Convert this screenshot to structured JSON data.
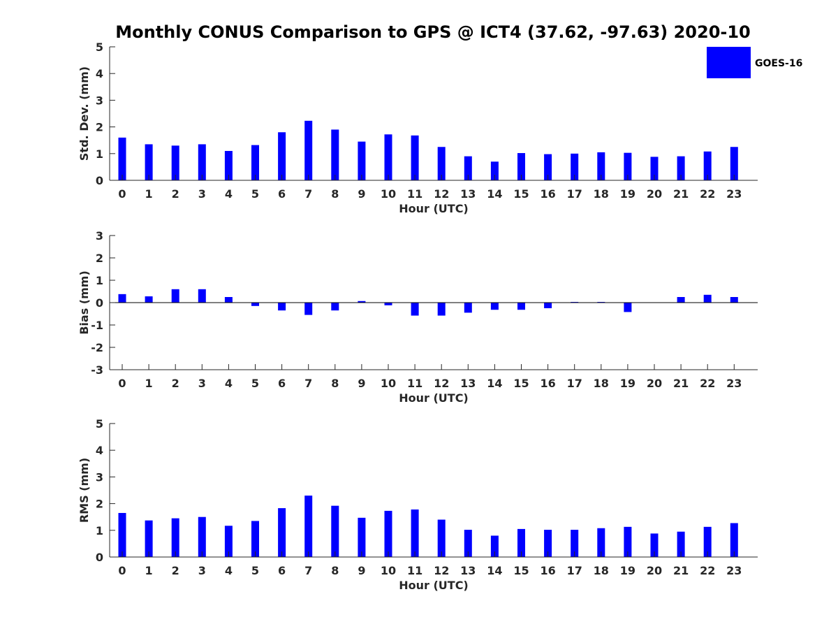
{
  "title": "Monthly CONUS Comparison to GPS @ ICT4 (37.62, -97.63) 2020-10",
  "legend": {
    "label": "GOES-16",
    "color": "#0000ff",
    "placement": "top-right"
  },
  "chart_data": [
    {
      "type": "bar",
      "name": "std-dev",
      "categories": [
        "0",
        "1",
        "2",
        "3",
        "4",
        "5",
        "6",
        "7",
        "8",
        "9",
        "10",
        "11",
        "12",
        "13",
        "14",
        "15",
        "16",
        "17",
        "18",
        "19",
        "20",
        "21",
        "22",
        "23"
      ],
      "series": [
        {
          "name": "GOES-16",
          "color": "#0000ff",
          "values": [
            1.6,
            1.35,
            1.3,
            1.35,
            1.1,
            1.32,
            1.8,
            2.23,
            1.9,
            1.45,
            1.72,
            1.68,
            1.25,
            0.9,
            0.7,
            1.02,
            0.98,
            1.0,
            1.05,
            1.03,
            0.88,
            0.9,
            1.08,
            1.25
          ]
        }
      ],
      "xlabel": "Hour (UTC)",
      "ylabel": "Std. Dev. (mm)",
      "ylim": [
        0,
        5
      ],
      "yticks": [
        "0",
        "1",
        "2",
        "3",
        "4",
        "5"
      ],
      "grid": false
    },
    {
      "type": "bar",
      "name": "bias",
      "categories": [
        "0",
        "1",
        "2",
        "3",
        "4",
        "5",
        "6",
        "7",
        "8",
        "9",
        "10",
        "11",
        "12",
        "13",
        "14",
        "15",
        "16",
        "17",
        "18",
        "19",
        "20",
        "21",
        "22",
        "23"
      ],
      "series": [
        {
          "name": "GOES-16",
          "color": "#0000ff",
          "values": [
            0.38,
            0.28,
            0.6,
            0.6,
            0.25,
            -0.15,
            -0.35,
            -0.55,
            -0.35,
            0.07,
            -0.12,
            -0.58,
            -0.58,
            -0.45,
            -0.32,
            -0.32,
            -0.25,
            0.03,
            0.03,
            -0.42,
            0.0,
            0.25,
            0.35,
            0.25
          ]
        }
      ],
      "xlabel": "Hour (UTC)",
      "ylabel": "Bias (mm)",
      "ylim": [
        -3,
        3
      ],
      "yticks": [
        "-3",
        "-2",
        "-1",
        "0",
        "1",
        "2",
        "3"
      ],
      "grid": false
    },
    {
      "type": "bar",
      "name": "rms",
      "categories": [
        "0",
        "1",
        "2",
        "3",
        "4",
        "5",
        "6",
        "7",
        "8",
        "9",
        "10",
        "11",
        "12",
        "13",
        "14",
        "15",
        "16",
        "17",
        "18",
        "19",
        "20",
        "21",
        "22",
        "23"
      ],
      "series": [
        {
          "name": "GOES-16",
          "color": "#0000ff",
          "values": [
            1.65,
            1.37,
            1.45,
            1.5,
            1.17,
            1.35,
            1.83,
            2.3,
            1.92,
            1.47,
            1.73,
            1.78,
            1.4,
            1.02,
            0.8,
            1.05,
            1.02,
            1.02,
            1.08,
            1.13,
            0.88,
            0.95,
            1.13,
            1.27
          ]
        }
      ],
      "xlabel": "Hour (UTC)",
      "ylabel": "RMS (mm)",
      "ylim": [
        0,
        5
      ],
      "yticks": [
        "0",
        "1",
        "2",
        "3",
        "4",
        "5"
      ],
      "grid": false
    }
  ]
}
